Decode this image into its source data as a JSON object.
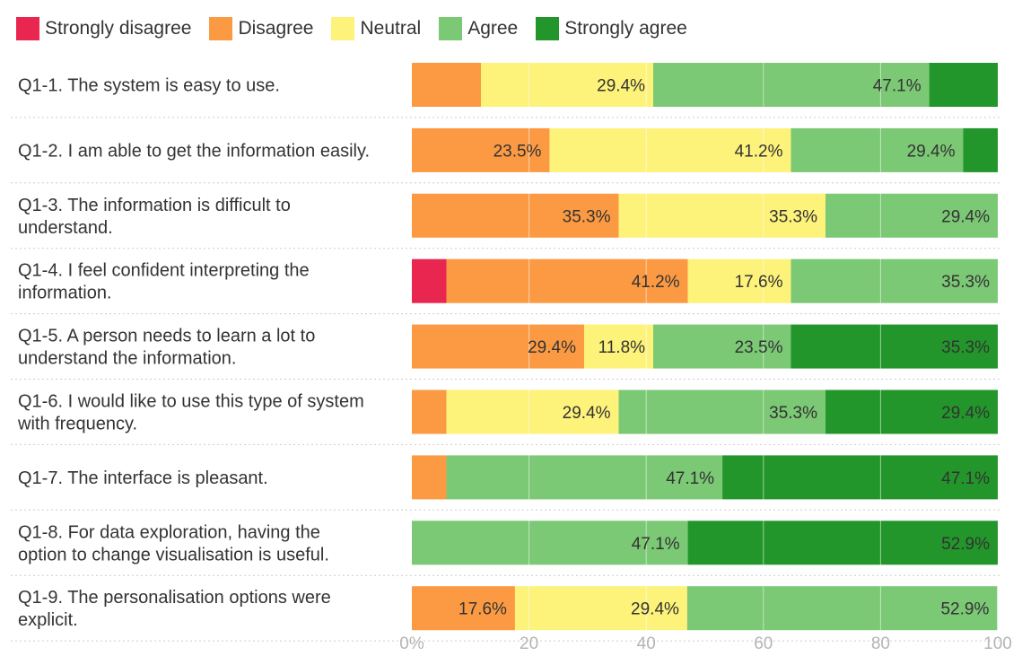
{
  "chart_data": {
    "type": "bar",
    "orientation": "horizontal",
    "stacked": true,
    "legend_position": "top-left",
    "grid": true,
    "xlim": [
      0,
      100
    ],
    "x_ticks": [
      "0%",
      "20",
      "40",
      "60",
      "80",
      "100"
    ],
    "series": [
      {
        "name": "Strongly disagree",
        "color": "#e8264f"
      },
      {
        "name": "Disagree",
        "color": "#fb9a43"
      },
      {
        "name": "Neutral",
        "color": "#fdf27a"
      },
      {
        "name": "Agree",
        "color": "#7bc875"
      },
      {
        "name": "Strongly agree",
        "color": "#22962a"
      }
    ],
    "rows": [
      {
        "label": [
          "Q1-1. The system is easy to use."
        ],
        "values": [
          0,
          11.8,
          29.4,
          47.1,
          11.8
        ],
        "labels": [
          "",
          "",
          "29.4%",
          "47.1%",
          ""
        ]
      },
      {
        "label": [
          "Q1-2. I am able to get the information easily."
        ],
        "values": [
          0,
          23.5,
          41.2,
          29.4,
          5.9
        ],
        "labels": [
          "",
          "23.5%",
          "41.2%",
          "29.4%",
          ""
        ]
      },
      {
        "label": [
          "Q1-3. The information is difficult to",
          "understand."
        ],
        "values": [
          0,
          35.3,
          35.3,
          29.4,
          0
        ],
        "labels": [
          "",
          "35.3%",
          "35.3%",
          "29.4%",
          ""
        ]
      },
      {
        "label": [
          "Q1-4. I feel confident interpreting the",
          "information."
        ],
        "values": [
          5.9,
          41.2,
          17.6,
          35.3,
          0
        ],
        "labels": [
          "",
          "41.2%",
          "17.6%",
          "35.3%",
          ""
        ]
      },
      {
        "label": [
          "Q1-5. A person needs to learn a lot to",
          "understand the information."
        ],
        "values": [
          0,
          29.4,
          11.8,
          23.5,
          35.3
        ],
        "labels": [
          "",
          "29.4%",
          "11.8%",
          "23.5%",
          "35.3%"
        ]
      },
      {
        "label": [
          "Q1-6. I would like to use this type of system",
          "with frequency."
        ],
        "values": [
          0,
          5.9,
          29.4,
          35.3,
          29.4
        ],
        "labels": [
          "",
          "",
          "29.4%",
          "35.3%",
          "29.4%"
        ]
      },
      {
        "label": [
          "Q1-7. The interface is pleasant."
        ],
        "values": [
          0,
          5.9,
          0,
          47.1,
          47.1
        ],
        "labels": [
          "",
          "",
          "",
          "47.1%",
          "47.1%"
        ]
      },
      {
        "label": [
          "Q1-8. For data exploration, having the",
          "option to change visualisation is useful."
        ],
        "values": [
          0,
          0,
          0,
          47.1,
          52.9
        ],
        "labels": [
          "",
          "",
          "",
          "47.1%",
          "52.9%"
        ]
      },
      {
        "label": [
          "Q1-9. The personalisation options were",
          "explicit."
        ],
        "values": [
          0,
          17.6,
          29.4,
          52.9,
          0
        ],
        "labels": [
          "",
          "17.6%",
          "29.4%",
          "52.9%",
          ""
        ]
      }
    ]
  }
}
